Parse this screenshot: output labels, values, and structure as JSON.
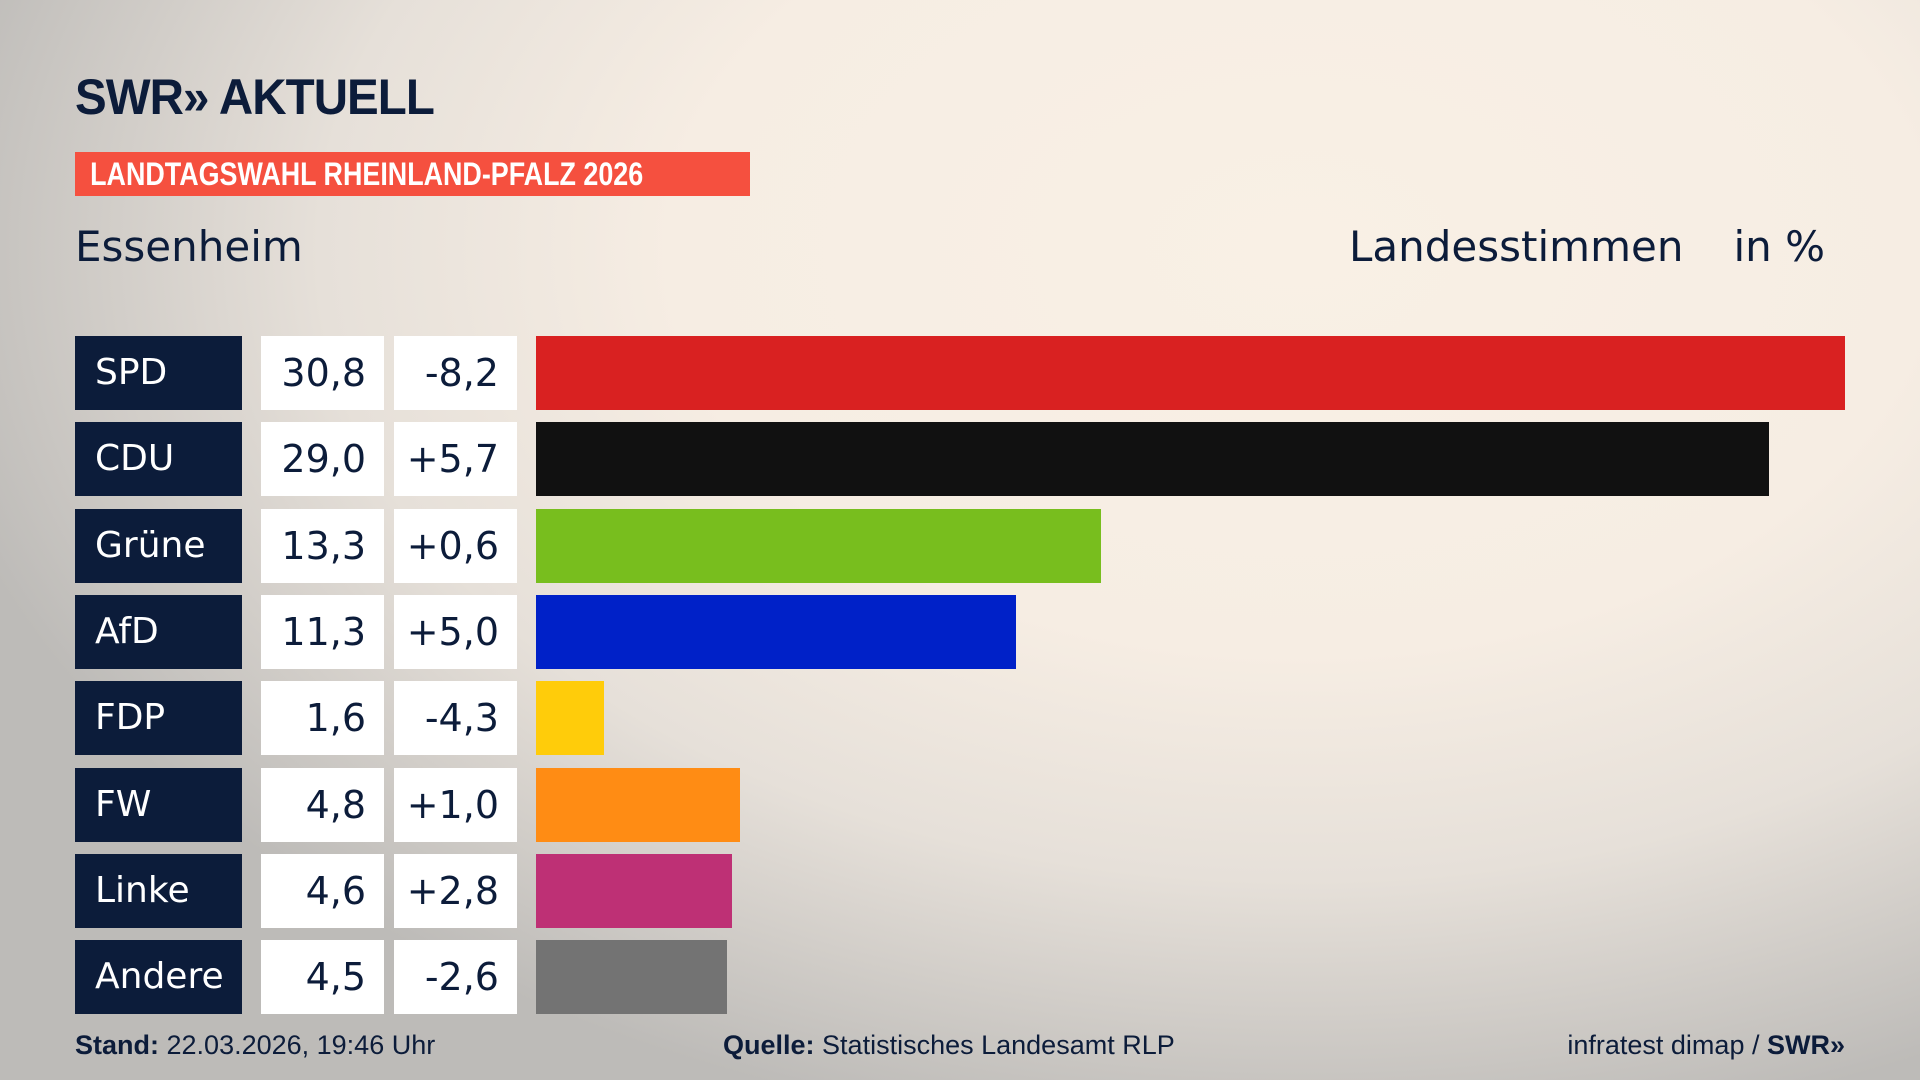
{
  "header": {
    "logo": "SWR» AKTUELL",
    "election": "LANDTAGSWAHL RHEINLAND-PFALZ 2026",
    "place": "Essenheim",
    "measure": "Landesstimmen",
    "unit": "in %"
  },
  "chart_data": {
    "type": "bar",
    "orientation": "horizontal",
    "xlim": [
      0,
      30.8
    ],
    "categories": [
      "SPD",
      "CDU",
      "Grüne",
      "AfD",
      "FDP",
      "FW",
      "Linke",
      "Andere"
    ],
    "values": [
      30.8,
      29.0,
      13.3,
      11.3,
      1.6,
      4.8,
      4.6,
      4.5
    ],
    "value_labels": [
      "30,8",
      "29,0",
      "13,3",
      "11,3",
      "1,6",
      "4,8",
      "4,6",
      "4,5"
    ],
    "diff_labels": [
      "-8,2",
      "+5,7",
      "+0,6",
      "+5,0",
      "-4,3",
      "+1,0",
      "+2,8",
      "-2,6"
    ],
    "colors": [
      "#d92121",
      "#111111",
      "#78be1e",
      "#0021c8",
      "#ffcc0a",
      "#ff8c14",
      "#be3075",
      "#737373"
    ]
  },
  "footer": {
    "stand_label": "Stand:",
    "stand_value": "22.03.2026, 19:46 Uhr",
    "source_label": "Quelle:",
    "source_value": "Statistisches Landesamt RLP",
    "credit": "infratest dimap /",
    "credit_logo": "SWR»"
  }
}
